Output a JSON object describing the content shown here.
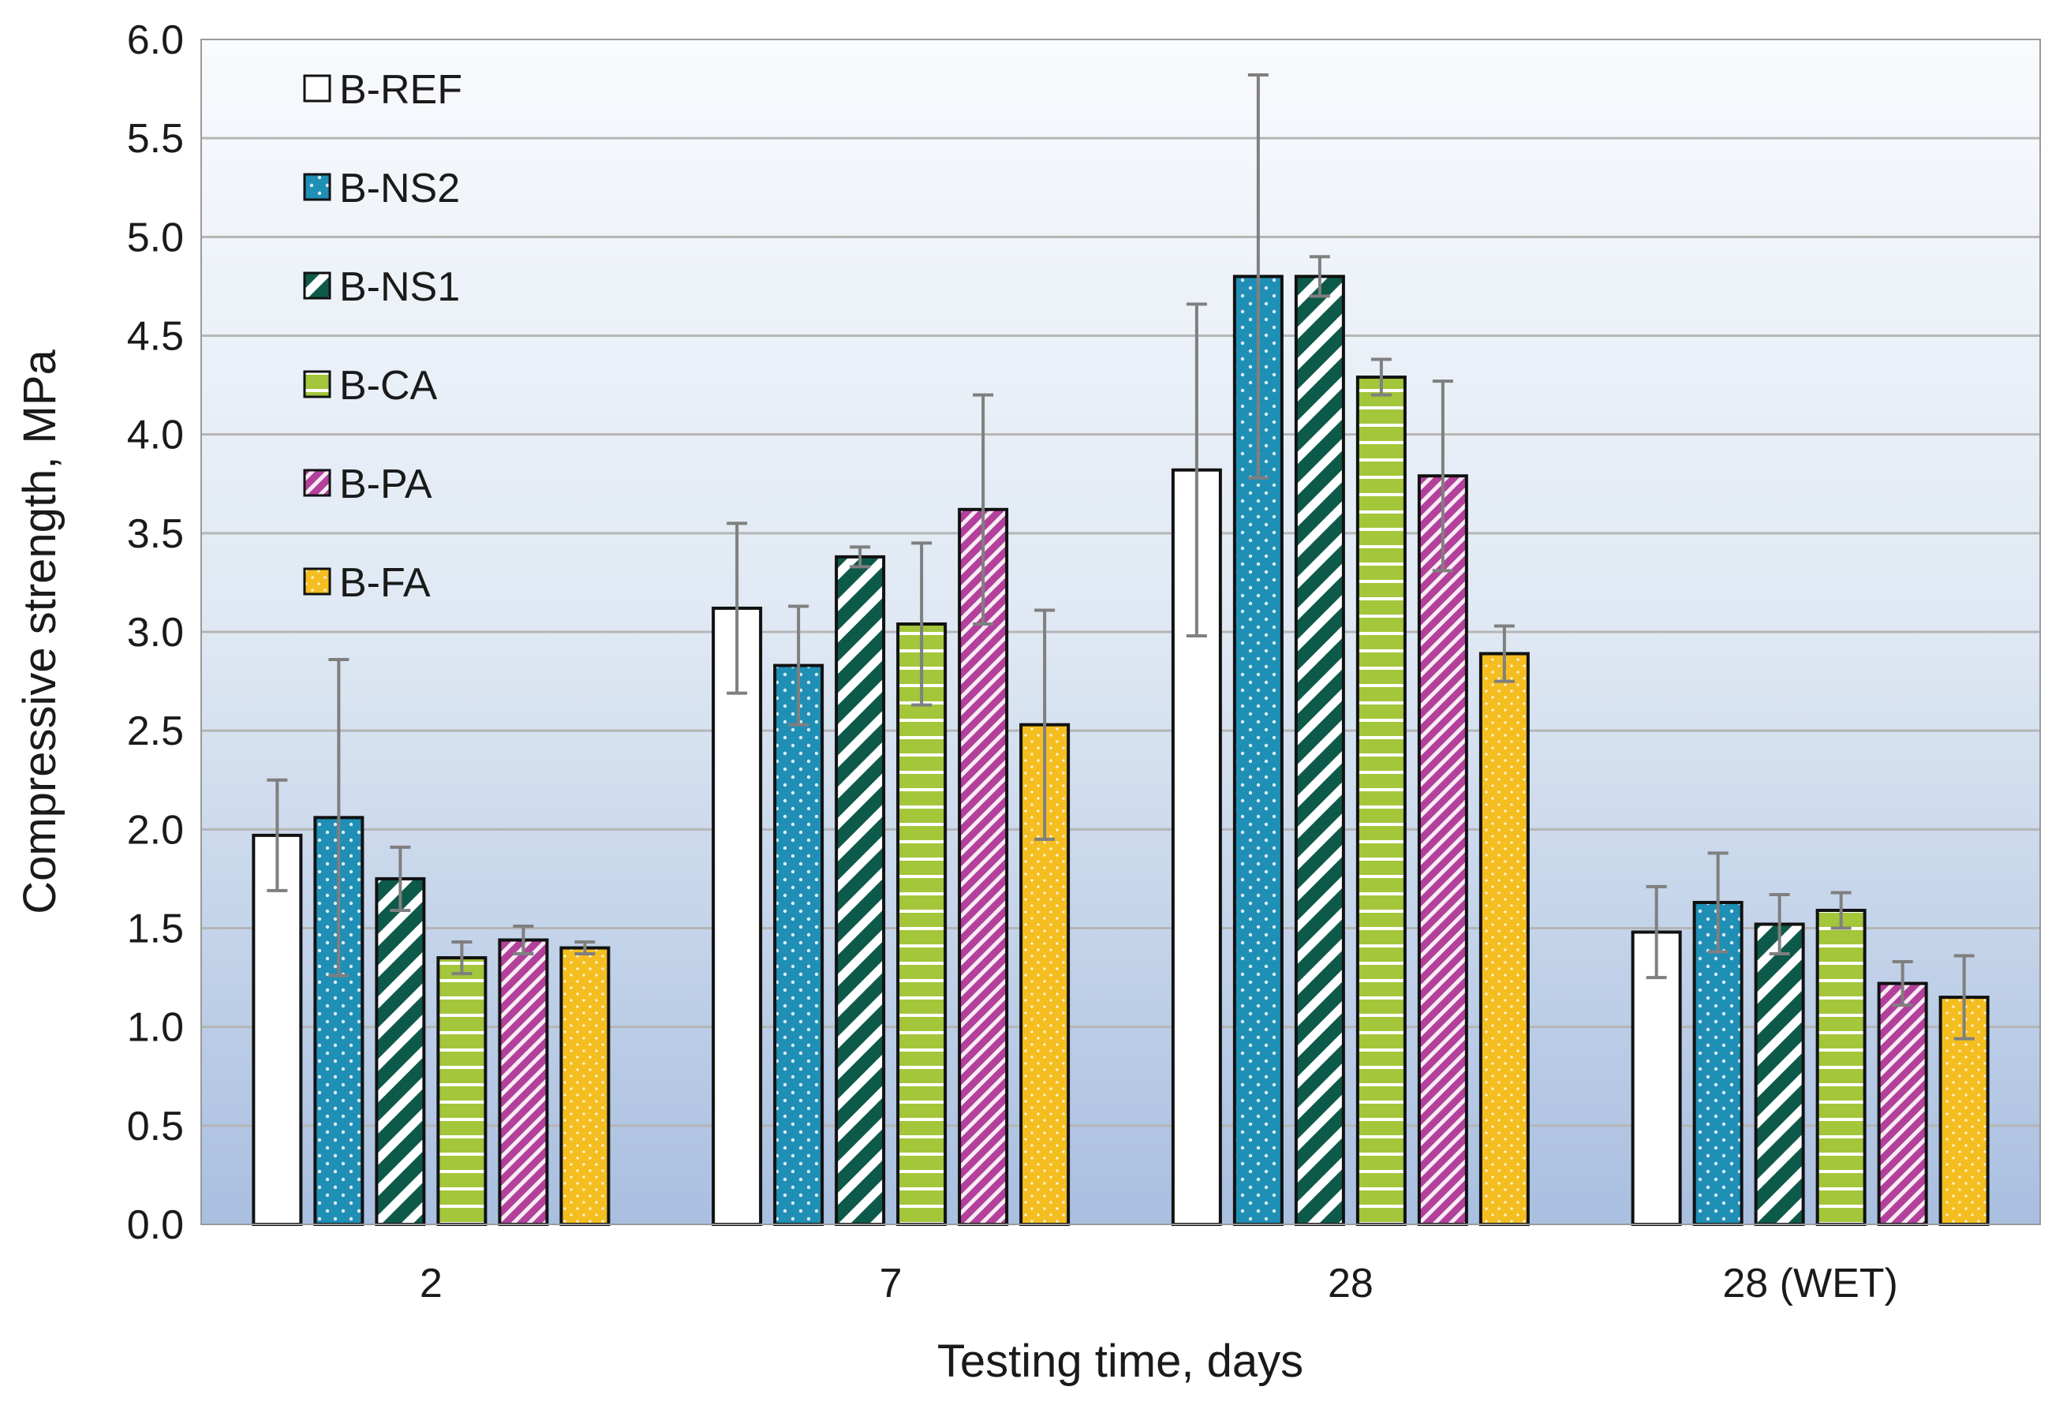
{
  "chart_data": {
    "type": "bar",
    "title": "",
    "xlabel": "Testing time, days",
    "ylabel": "Compressive strength, MPa",
    "ylim": [
      0,
      6
    ],
    "ytick_step": 0.5,
    "ytick_labels": [
      "0.0",
      "0.5",
      "1.0",
      "1.5",
      "2.0",
      "2.5",
      "3.0",
      "3.5",
      "4.0",
      "4.5",
      "5.0",
      "5.5",
      "6.0"
    ],
    "categories": [
      "2",
      "7",
      "28",
      "28 (WET)"
    ],
    "grid": true,
    "legend_position": "top-left",
    "series": [
      {
        "name": "B-REF",
        "color": "#ffffff",
        "pattern": "none",
        "values": [
          1.97,
          3.12,
          3.82,
          1.48
        ],
        "errors": [
          0.28,
          0.43,
          0.84,
          0.23
        ]
      },
      {
        "name": "B-NS2",
        "color": "#1f8fb5",
        "pattern": "dots",
        "values": [
          2.06,
          2.83,
          4.8,
          1.63
        ],
        "errors": [
          0.8,
          0.3,
          1.02,
          0.25
        ]
      },
      {
        "name": "B-NS1",
        "color": "#0e5a4a",
        "pattern": "diagonal",
        "values": [
          1.75,
          3.38,
          4.8,
          1.52
        ],
        "errors": [
          0.16,
          0.05,
          0.1,
          0.15
        ]
      },
      {
        "name": "B-CA",
        "color": "#a3c63a",
        "pattern": "horizontal",
        "values": [
          1.35,
          3.04,
          4.29,
          1.59
        ],
        "errors": [
          0.08,
          0.41,
          0.09,
          0.09
        ]
      },
      {
        "name": "B-PA",
        "color": "#b3419c",
        "pattern": "diagonal-fine",
        "values": [
          1.44,
          3.62,
          3.79,
          1.22
        ],
        "errors": [
          0.07,
          0.58,
          0.48,
          0.11
        ]
      },
      {
        "name": "B-FA",
        "color": "#f5be20",
        "pattern": "dots-small",
        "values": [
          1.4,
          2.53,
          2.89,
          1.15
        ],
        "errors": [
          0.03,
          0.58,
          0.14,
          0.21
        ]
      }
    ]
  }
}
